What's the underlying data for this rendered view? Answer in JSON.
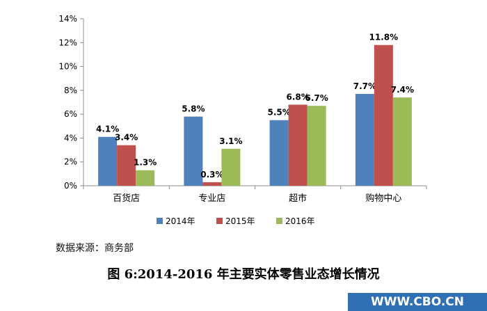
{
  "chart_data": {
    "type": "bar",
    "categories": [
      "百货店",
      "专业店",
      "超市",
      "购物中心"
    ],
    "series": [
      {
        "name": "2014年",
        "color": "#4f81bd",
        "values": [
          4.1,
          5.8,
          5.5,
          7.7
        ],
        "labels": [
          "4.1%",
          "5.8%",
          "5.5%",
          "7.7%"
        ]
      },
      {
        "name": "2015年",
        "color": "#c0504d",
        "values": [
          3.4,
          0.3,
          6.8,
          11.8
        ],
        "labels": [
          "3.4%",
          "0.3%",
          "6.8%",
          "11.8%"
        ]
      },
      {
        "name": "2016年",
        "color": "#9bbb59",
        "values": [
          1.3,
          3.1,
          6.7,
          7.4
        ],
        "labels": [
          "1.3%",
          "3.1%",
          "6.7%",
          "7.4%"
        ]
      }
    ],
    "ylim": [
      0,
      14
    ],
    "yticks": [
      0,
      2,
      4,
      6,
      8,
      10,
      12,
      14
    ],
    "ytick_labels": [
      "0%",
      "2%",
      "4%",
      "6%",
      "8%",
      "10%",
      "12%",
      "14%"
    ],
    "grid": false,
    "legend_position": "bottom",
    "title": "",
    "xlabel": "",
    "ylabel": ""
  },
  "source_note": "数据来源：商务部",
  "caption": "图 6:2014-2016 年主要实体零售业态增长情况",
  "watermark": "WWW.CBO.CN"
}
